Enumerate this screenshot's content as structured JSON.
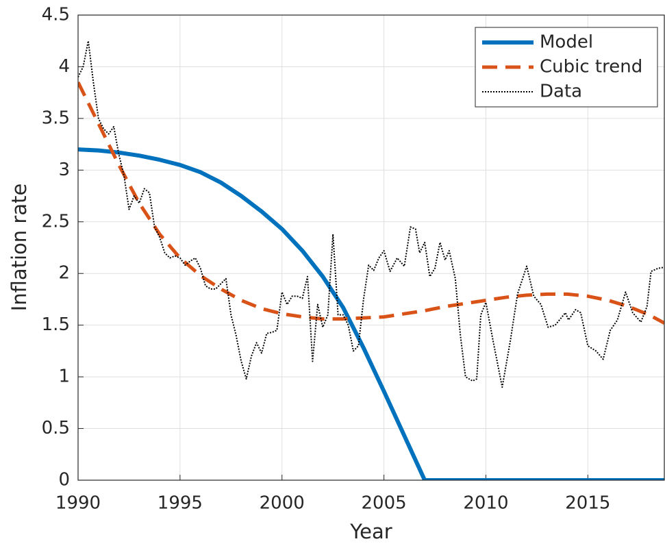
{
  "chart_data": {
    "type": "line",
    "xlabel": "Year",
    "ylabel": "Inflation rate",
    "xlim": [
      1990,
      2018.75
    ],
    "ylim": [
      0,
      4.5
    ],
    "xticks": [
      1990,
      1995,
      2000,
      2005,
      2010,
      2015
    ],
    "yticks": [
      0,
      0.5,
      1,
      1.5,
      2,
      2.5,
      3,
      3.5,
      4,
      4.5
    ],
    "grid": true,
    "legend": "upper right",
    "series": [
      {
        "name": "Model",
        "color": "#0072bd",
        "style": "solid",
        "x": [
          1990,
          1991,
          1992,
          1993,
          1994,
          1995,
          1996,
          1997,
          1998,
          1999,
          2000,
          2001,
          2002,
          2003,
          2004,
          2005,
          2006,
          2007,
          2010,
          2015,
          2018.75
        ],
        "values": [
          3.2,
          3.19,
          3.17,
          3.14,
          3.1,
          3.05,
          2.98,
          2.88,
          2.75,
          2.6,
          2.43,
          2.22,
          1.97,
          1.67,
          1.28,
          0.86,
          0.43,
          0,
          0,
          0,
          0
        ]
      },
      {
        "name": "Cubic trend",
        "color": "#d95319",
        "style": "dashed",
        "x": [
          1990,
          1991,
          1992,
          1993,
          1994,
          1995,
          1996,
          1997,
          1998,
          1999,
          2000,
          2001,
          2002,
          2003,
          2004,
          2005,
          2006,
          2007,
          2008,
          2009,
          2010,
          2011,
          2012,
          2013,
          2014,
          2015,
          2016,
          2017,
          2018,
          2018.75
        ],
        "values": [
          3.85,
          3.45,
          3.05,
          2.68,
          2.38,
          2.15,
          1.98,
          1.85,
          1.74,
          1.66,
          1.61,
          1.58,
          1.56,
          1.56,
          1.57,
          1.58,
          1.61,
          1.64,
          1.68,
          1.71,
          1.74,
          1.77,
          1.79,
          1.8,
          1.8,
          1.78,
          1.74,
          1.68,
          1.6,
          1.52
        ]
      },
      {
        "name": "Data",
        "color": "#000000",
        "style": "dotted",
        "x": [
          1990,
          1990.25,
          1990.5,
          1990.75,
          1991,
          1991.25,
          1991.5,
          1991.75,
          1992,
          1992.25,
          1992.5,
          1992.75,
          1993,
          1993.25,
          1993.5,
          1993.75,
          1994,
          1994.25,
          1994.5,
          1994.75,
          1995,
          1995.25,
          1995.5,
          1995.75,
          1996,
          1996.25,
          1996.5,
          1996.75,
          1997,
          1997.25,
          1997.5,
          1997.75,
          1998,
          1998.25,
          1998.5,
          1998.75,
          1999,
          1999.25,
          1999.5,
          1999.75,
          2000,
          2000.25,
          2000.5,
          2000.75,
          2001,
          2001.25,
          2001.5,
          2001.75,
          2002,
          2002.25,
          2002.5,
          2002.75,
          2003,
          2003.25,
          2003.5,
          2003.75,
          2004,
          2004.25,
          2004.5,
          2004.75,
          2005,
          2005.3,
          2005.65,
          2006,
          2006.3,
          2006.55,
          2006.75,
          2007,
          2007.25,
          2007.5,
          2007.75,
          2008,
          2008.2,
          2008.5,
          2008.75,
          2009,
          2009.35,
          2009.55,
          2009.75,
          2010,
          2010.35,
          2010.8,
          2011.2,
          2011.55,
          2012,
          2012.35,
          2012.7,
          2013.05,
          2013.4,
          2013.9,
          2014.05,
          2014.4,
          2014.65,
          2015,
          2015.4,
          2015.75,
          2016.1,
          2016.45,
          2016.85,
          2017.2,
          2017.6,
          2017.9,
          2018.1,
          2018.45,
          2018.75
        ],
        "values": [
          3.9,
          4.0,
          4.25,
          3.85,
          3.5,
          3.4,
          3.35,
          3.42,
          3.15,
          2.95,
          2.62,
          2.75,
          2.68,
          2.82,
          2.78,
          2.45,
          2.35,
          2.2,
          2.15,
          2.17,
          2.15,
          2.08,
          2.12,
          2.15,
          2.05,
          1.88,
          1.85,
          1.85,
          1.9,
          1.95,
          1.6,
          1.4,
          1.15,
          0.98,
          1.2,
          1.33,
          1.23,
          1.42,
          1.43,
          1.45,
          1.82,
          1.7,
          1.78,
          1.78,
          1.76,
          1.97,
          1.15,
          1.7,
          1.48,
          1.6,
          2.38,
          1.6,
          1.6,
          1.5,
          1.25,
          1.3,
          1.75,
          2.08,
          2.03,
          2.15,
          2.22,
          2.02,
          2.15,
          2.07,
          2.45,
          2.43,
          2.2,
          2.3,
          1.97,
          2.05,
          2.3,
          2.13,
          2.22,
          1.95,
          1.4,
          1.0,
          0.96,
          0.98,
          1.6,
          1.72,
          1.35,
          0.9,
          1.35,
          1.8,
          2.07,
          1.78,
          1.7,
          1.48,
          1.5,
          1.62,
          1.55,
          1.65,
          1.62,
          1.3,
          1.25,
          1.17,
          1.45,
          1.55,
          1.82,
          1.62,
          1.53,
          1.68,
          2.02,
          2.05,
          2.06
        ]
      }
    ]
  }
}
